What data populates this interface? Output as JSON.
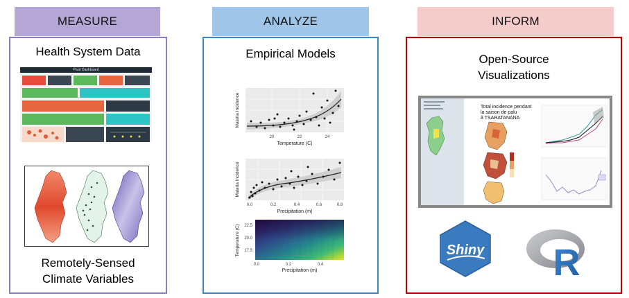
{
  "columns": [
    {
      "header": "MEASURE",
      "title": "Health System Data",
      "subtitle_lines": [
        "Remotely-Sensed",
        "Climate Variables"
      ],
      "dashboard_title": "Pivot Dashboard"
    },
    {
      "header": "ANALYZE",
      "title": "Empirical Models",
      "plots": [
        {
          "ylabel": "Malaria Incidence",
          "xlabel": "Temperature (C)",
          "ticks": [
            "20",
            "22",
            "24"
          ]
        },
        {
          "ylabel": "Malaria Incidence",
          "xlabel": "Precipitation (m)",
          "ticks": [
            "0.0",
            "0.2",
            "0.4",
            "0.6",
            "0.8"
          ]
        },
        {
          "ylabel": "Temperature (C)",
          "xlabel": "Precipitation (m)",
          "xticks": [
            "0.0",
            "0.2",
            "0.4"
          ],
          "yticks": [
            "22.5",
            "20.0",
            "17.5"
          ]
        }
      ]
    },
    {
      "header": "INFORM",
      "title_lines": [
        "Open-Source",
        "Visualizations"
      ],
      "viz_title_lines": [
        "Total incidence pendant",
        "la saison de palu",
        "à TSARATANANA"
      ],
      "logos": [
        "Shiny",
        "R"
      ]
    }
  ],
  "colors": {
    "measure_header": "#b4a7d6",
    "measure_border": "#8e7cc3",
    "analyze_header": "#9fc5e8",
    "analyze_border": "#3d85c6",
    "inform_header": "#f4cccc",
    "inform_border": "#c00000"
  }
}
